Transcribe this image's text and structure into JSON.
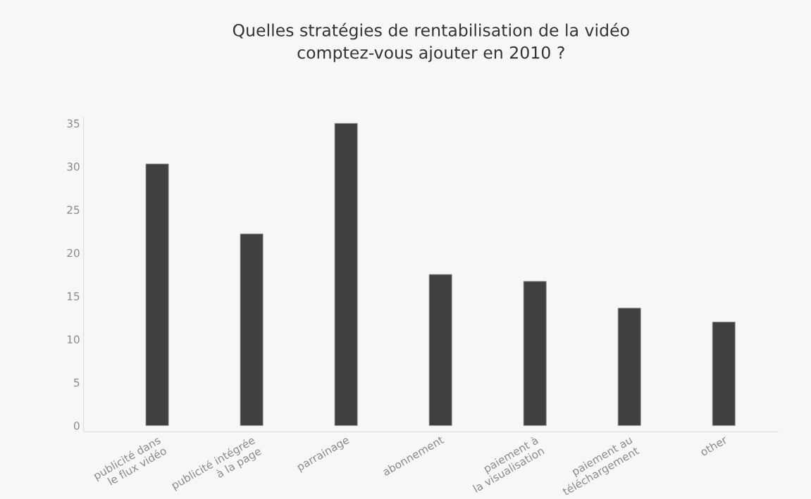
{
  "chart_data": {
    "type": "bar",
    "title": "Quelles stratégies de rentabilisation de la vidéo\ncomptez-vous ajouter en 2010 ?",
    "categories": [
      "publicité dans\nle flux vidéo",
      "publicité intégrée\nà la page",
      "parrainage",
      "abonnement",
      "paiement à\nla visualisation",
      "paiement au\ntéléchargement",
      "other"
    ],
    "values": [
      30.3,
      22.2,
      35.0,
      17.5,
      16.7,
      13.6,
      12.0
    ],
    "color": "#404040",
    "ylim": [
      -0.7,
      35.7
    ],
    "yticks": [
      0,
      5,
      10,
      15,
      20,
      25,
      30,
      35
    ],
    "grid": false
  }
}
